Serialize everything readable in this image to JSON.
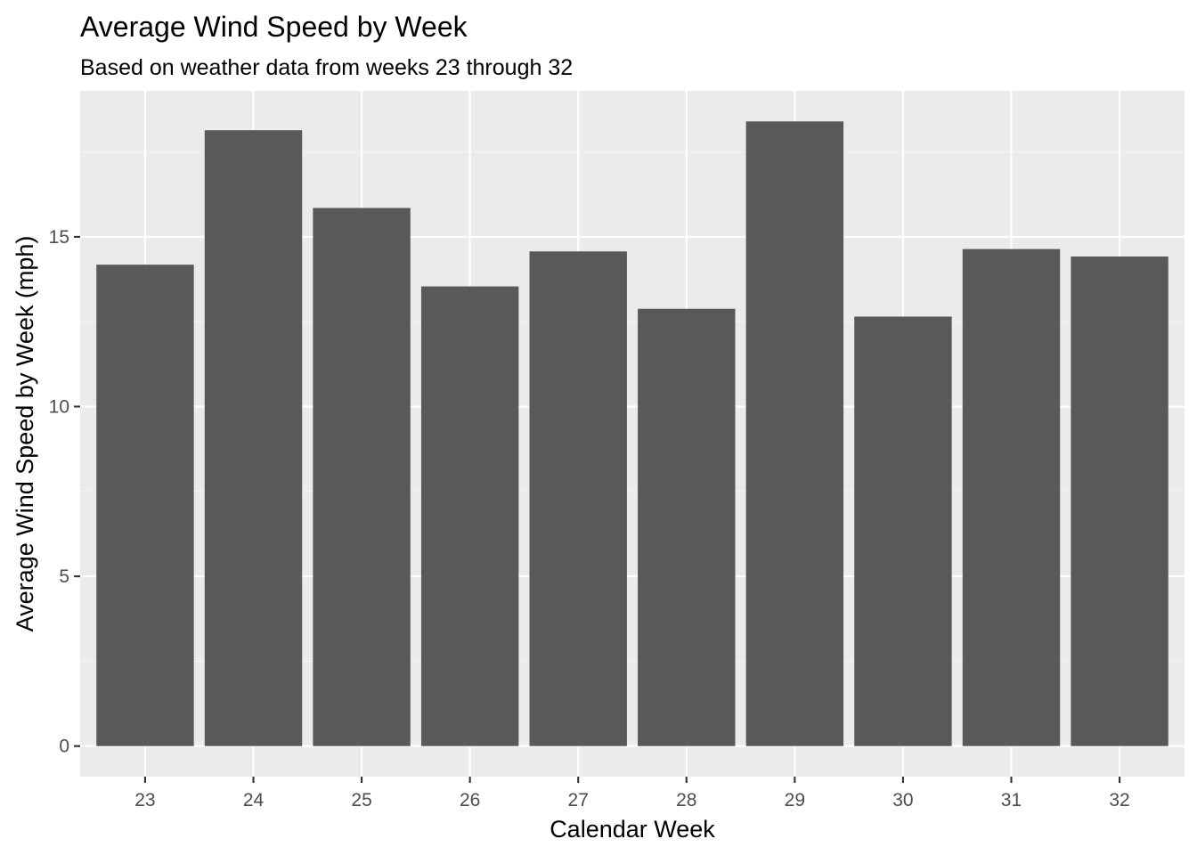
{
  "chart_data": {
    "type": "bar",
    "title": "Average Wind Speed by Week",
    "subtitle": "Based on weather data from weeks 23 through 32",
    "xlabel": "Calendar Week",
    "ylabel": "Average Wind Speed by Week (mph)",
    "categories": [
      "23",
      "24",
      "25",
      "26",
      "27",
      "28",
      "29",
      "30",
      "31",
      "32"
    ],
    "values": [
      14.18,
      18.14,
      15.85,
      13.54,
      14.57,
      12.88,
      18.4,
      12.65,
      14.64,
      14.42
    ],
    "ylim": [
      -0.9,
      19.3
    ],
    "yticks": [
      0,
      5,
      10,
      15
    ],
    "yticklabels": [
      "0",
      "5",
      "10",
      "15"
    ],
    "grid": true,
    "legend": "none",
    "colors": {
      "panel_background": "#ebebeb",
      "grid_major": "#ffffff",
      "grid_minor": "#f5f5f5",
      "bar_fill": "#595959",
      "tick_label": "#4d4d4d",
      "tick_mark": "#333333",
      "text": "#000000"
    }
  }
}
